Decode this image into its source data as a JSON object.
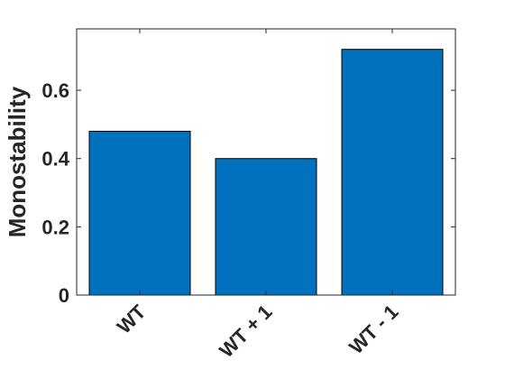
{
  "chart_data": {
    "type": "bar",
    "title": "",
    "xlabel": "",
    "ylabel": "Monostability",
    "categories": [
      "WT",
      "WT + 1",
      "WT - 1"
    ],
    "values": [
      0.48,
      0.4,
      0.72
    ],
    "ylim": [
      0,
      0.78
    ],
    "yticks": [
      0,
      0.2,
      0.4,
      0.6
    ],
    "ytick_labels": [
      "0",
      "0.2",
      "0.4",
      "0.6"
    ],
    "grid": false,
    "legend": "none",
    "colors": {
      "bar_fill": "#0072BD",
      "bar_edge": "#000000",
      "axis": "#262626"
    }
  }
}
